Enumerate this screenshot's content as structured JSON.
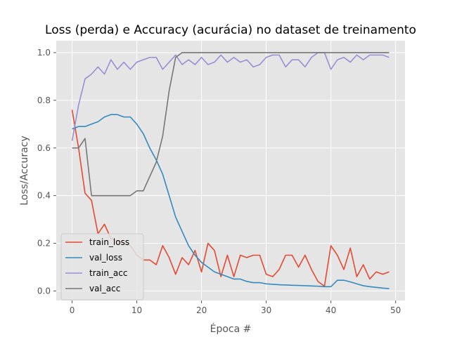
{
  "chart_data": {
    "type": "line",
    "title": "Loss (perda) e Accuracy (acurácia) no dataset de treinamento",
    "xlabel": "Época #",
    "ylabel": "Loss/Accuracy",
    "xlim": [
      -2.45,
      51.45
    ],
    "ylim": [
      -0.04,
      1.05
    ],
    "xticks": [
      0,
      10,
      20,
      30,
      40,
      50
    ],
    "yticks": [
      0.0,
      0.2,
      0.4,
      0.6,
      0.8,
      1.0
    ],
    "ytick_labels": [
      "0.0",
      "0.2",
      "0.4",
      "0.6",
      "0.8",
      "1.0"
    ],
    "grid": true,
    "legend_position": "lower-left",
    "x": [
      0,
      1,
      2,
      3,
      4,
      5,
      6,
      7,
      8,
      9,
      10,
      11,
      12,
      13,
      14,
      15,
      16,
      17,
      18,
      19,
      20,
      21,
      22,
      23,
      24,
      25,
      26,
      27,
      28,
      29,
      30,
      31,
      32,
      33,
      34,
      35,
      36,
      37,
      38,
      39,
      40,
      41,
      42,
      43,
      44,
      45,
      46,
      47,
      48,
      49
    ],
    "series": [
      {
        "name": "train_loss",
        "color": "#e24a33",
        "values": [
          0.76,
          0.6,
          0.41,
          0.38,
          0.24,
          0.28,
          0.22,
          0.21,
          0.2,
          0.19,
          0.15,
          0.13,
          0.13,
          0.11,
          0.19,
          0.14,
          0.07,
          0.14,
          0.11,
          0.17,
          0.08,
          0.2,
          0.17,
          0.06,
          0.15,
          0.06,
          0.15,
          0.14,
          0.15,
          0.15,
          0.07,
          0.06,
          0.09,
          0.15,
          0.15,
          0.1,
          0.15,
          0.09,
          0.04,
          0.02,
          0.19,
          0.15,
          0.09,
          0.18,
          0.06,
          0.11,
          0.05,
          0.08,
          0.07,
          0.08
        ]
      },
      {
        "name": "val_loss",
        "color": "#348abd",
        "values": [
          0.68,
          0.69,
          0.69,
          0.7,
          0.71,
          0.73,
          0.74,
          0.74,
          0.73,
          0.73,
          0.7,
          0.66,
          0.6,
          0.55,
          0.49,
          0.4,
          0.31,
          0.25,
          0.19,
          0.15,
          0.12,
          0.1,
          0.08,
          0.07,
          0.06,
          0.05,
          0.05,
          0.04,
          0.035,
          0.035,
          0.03,
          0.028,
          0.026,
          0.025,
          0.024,
          0.023,
          0.022,
          0.021,
          0.02,
          0.018,
          0.018,
          0.045,
          0.045,
          0.038,
          0.03,
          0.022,
          0.018,
          0.015,
          0.012,
          0.01
        ]
      },
      {
        "name": "train_acc",
        "color": "#988ed5",
        "values": [
          0.63,
          0.78,
          0.89,
          0.91,
          0.94,
          0.91,
          0.97,
          0.93,
          0.96,
          0.93,
          0.96,
          0.97,
          0.98,
          0.98,
          0.93,
          0.96,
          0.99,
          0.95,
          0.97,
          0.95,
          0.98,
          0.95,
          0.96,
          0.99,
          0.96,
          0.98,
          0.96,
          0.97,
          0.94,
          0.95,
          0.98,
          0.99,
          0.99,
          0.94,
          0.97,
          0.97,
          0.94,
          0.98,
          1.0,
          1.0,
          0.93,
          0.97,
          0.98,
          0.96,
          0.99,
          0.97,
          0.99,
          0.99,
          0.99,
          0.98
        ]
      },
      {
        "name": "val_acc",
        "color": "#777777",
        "values": [
          0.6,
          0.6,
          0.64,
          0.4,
          0.4,
          0.4,
          0.4,
          0.4,
          0.4,
          0.4,
          0.42,
          0.42,
          0.48,
          0.54,
          0.65,
          0.84,
          0.98,
          1.0,
          1.0,
          1.0,
          1.0,
          1.0,
          1.0,
          1.0,
          1.0,
          1.0,
          1.0,
          1.0,
          1.0,
          1.0,
          1.0,
          1.0,
          1.0,
          1.0,
          1.0,
          1.0,
          1.0,
          1.0,
          1.0,
          1.0,
          1.0,
          1.0,
          1.0,
          1.0,
          1.0,
          1.0,
          1.0,
          1.0,
          1.0,
          1.0
        ]
      }
    ]
  }
}
